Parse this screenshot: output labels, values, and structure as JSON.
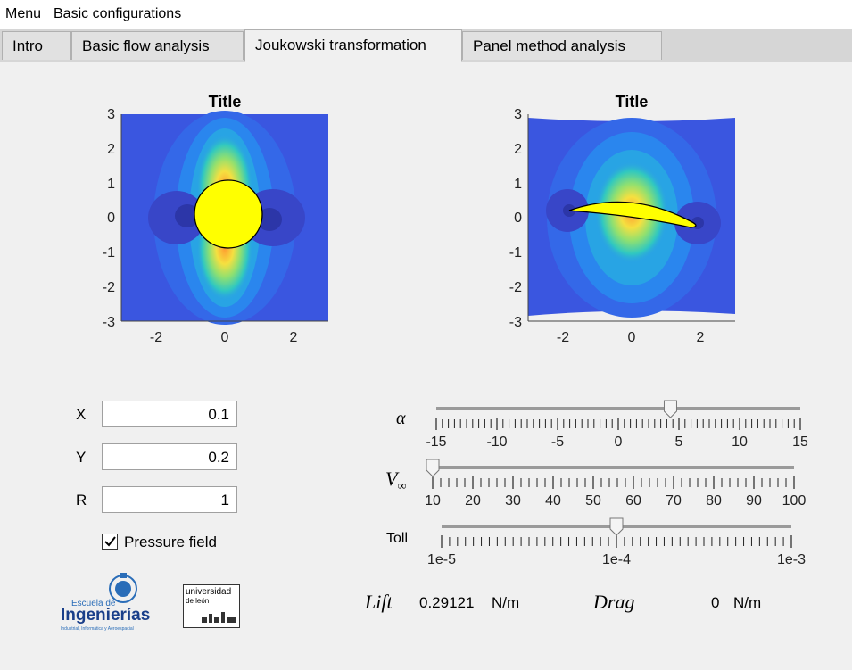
{
  "menubar": {
    "menu_label": "Menu",
    "config_label": "Basic configurations"
  },
  "tabs": [
    {
      "label": "Intro"
    },
    {
      "label": "Basic flow analysis"
    },
    {
      "label": "Joukowski transformation"
    },
    {
      "label": "Panel method analysis"
    }
  ],
  "active_tab": "Joukowski transformation",
  "plot_left": {
    "title": "Title",
    "xticks": [
      "-2",
      "0",
      "2"
    ],
    "yticks": [
      "3",
      "2",
      "1",
      "0",
      "-1",
      "-2",
      "-3"
    ]
  },
  "plot_right": {
    "title": "Title",
    "xticks": [
      "-2",
      "0",
      "2"
    ],
    "yticks": [
      "3",
      "2",
      "1",
      "0",
      "-1",
      "-2",
      "-3"
    ]
  },
  "inputs": {
    "x": {
      "label": "X",
      "value": "0.1"
    },
    "y": {
      "label": "Y",
      "value": "0.2"
    },
    "r": {
      "label": "R",
      "value": "1"
    }
  },
  "pressure_field": {
    "label": "Pressure field",
    "checked": true
  },
  "sliders": {
    "alpha": {
      "symbol": "α",
      "ticks": [
        "-15",
        "-10",
        "-5",
        "0",
        "5",
        "10",
        "15"
      ],
      "value": 4.3
    },
    "vinf": {
      "symbol": "V",
      "subscript": "∞",
      "ticks": [
        "10",
        "20",
        "30",
        "40",
        "50",
        "60",
        "70",
        "80",
        "90",
        "100"
      ],
      "value": 10
    },
    "toll": {
      "label": "Toll",
      "ticks": [
        "1e-5",
        "1e-4",
        "1e-3"
      ],
      "value": "1e-4"
    }
  },
  "results": {
    "lift_label": "Lift",
    "lift_value": "0.29121",
    "lift_unit": "N/m",
    "drag_label": "Drag",
    "drag_value": "0",
    "drag_unit": "N/m"
  },
  "logos": {
    "escuela_small": "Escuela de",
    "escuela_big": "Ingenierías",
    "escuela_sub": "Industrial, Informática y Aeroespacial",
    "uni_line1": "universidad",
    "uni_line2": "de león"
  },
  "colors": {
    "contour_bg": "#3a56e0",
    "airfoil": "#ffff00"
  }
}
